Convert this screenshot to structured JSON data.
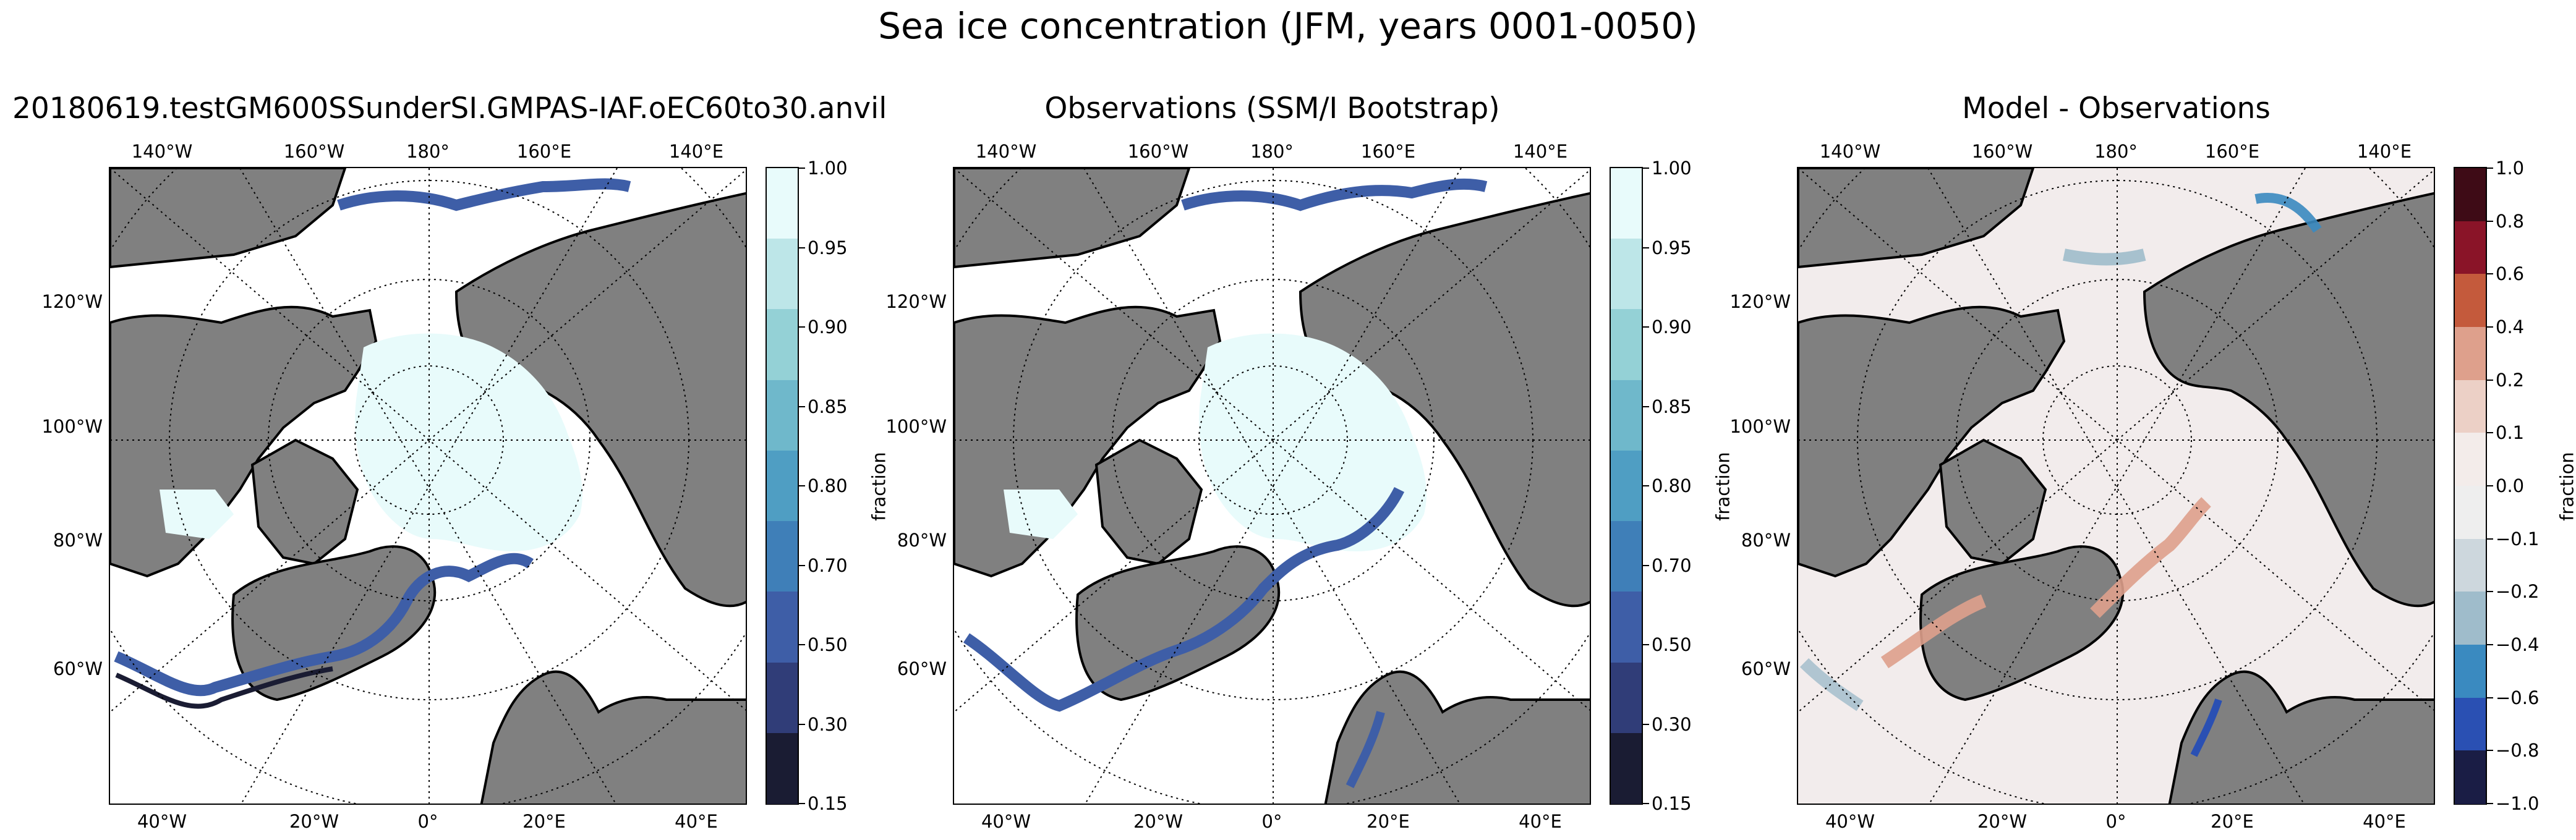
{
  "figure": {
    "title": "Sea ice concentration (JFM, years 0001-0050)"
  },
  "panels": [
    {
      "title": "20180619.testGM600SSunderSI.GMPAS-IAF.oEC60to30.anvil",
      "colorbar": {
        "label": "fraction",
        "ticks": [
          "1.00",
          "0.95",
          "0.90",
          "0.85",
          "0.80",
          "0.70",
          "0.50",
          "0.30",
          "0.15"
        ],
        "colors": [
          "#e8fbfb",
          "#bde6e8",
          "#94d1d6",
          "#6fb8cb",
          "#4f9ec3",
          "#3f7fb8",
          "#3e5ea7",
          "#303d78",
          "#1a1c33"
        ]
      }
    },
    {
      "title": "Observations (SSM/I Bootstrap)",
      "colorbar": {
        "label": "fraction",
        "ticks": [
          "1.00",
          "0.95",
          "0.90",
          "0.85",
          "0.80",
          "0.70",
          "0.50",
          "0.30",
          "0.15"
        ],
        "colors": [
          "#e8fbfb",
          "#bde6e8",
          "#94d1d6",
          "#6fb8cb",
          "#4f9ec3",
          "#3f7fb8",
          "#3e5ea7",
          "#303d78",
          "#1a1c33"
        ]
      }
    },
    {
      "title": "Model - Observations",
      "colorbar": {
        "label": "fraction",
        "ticks": [
          "1.0",
          "0.8",
          "0.6",
          "0.4",
          "0.2",
          "0.1",
          "0.0",
          "−0.1",
          "−0.2",
          "−0.4",
          "−0.6",
          "−0.8",
          "−1.0"
        ],
        "colors": [
          "#3e0b16",
          "#8a1428",
          "#c45a3c",
          "#dea08c",
          "#ecd0c6",
          "#f3ecea",
          "#eeeeee",
          "#cdd7dd",
          "#9fbccb",
          "#3a8ac0",
          "#2a50b3",
          "#1a1d45"
        ]
      }
    }
  ],
  "axis_labels": {
    "top": [
      "140°W",
      "160°W",
      "180°",
      "160°E",
      "140°E"
    ],
    "left": [
      "120°W",
      "100°W",
      "80°W",
      "60°W"
    ],
    "bottom": [
      "40°W",
      "20°W",
      "0°",
      "20°E",
      "40°E"
    ]
  },
  "colors": {
    "land": "#808080",
    "ocean": "#ffffff",
    "ice": "#e8fbfb",
    "diff_background": "#f2ecec"
  }
}
